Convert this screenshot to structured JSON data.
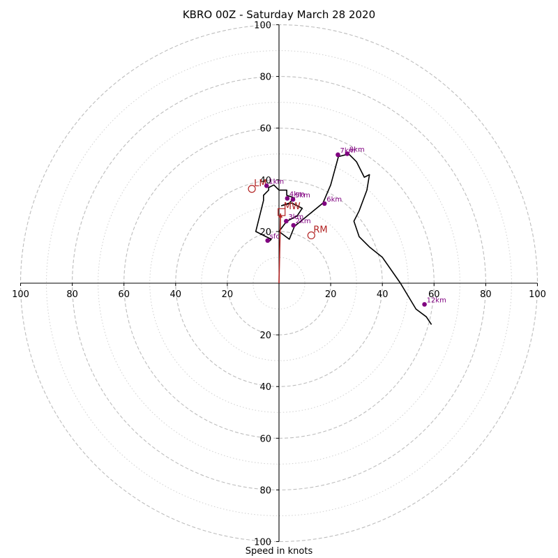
{
  "title": "KBRO 00Z - Saturday March 28 2020",
  "xlabel": "Speed in knots",
  "chart_data": {
    "type": "hodograph",
    "title": "KBRO 00Z - Saturday March 28 2020",
    "xlabel": "Speed in knots",
    "xlim": [
      -100,
      100
    ],
    "ylim": [
      -100,
      100
    ],
    "rings_major": [
      20,
      40,
      60,
      80,
      100
    ],
    "rings_minor": [
      10,
      30,
      50,
      70,
      90
    ],
    "tick_labels": {
      "x_left": [
        "100",
        "80",
        "60",
        "40",
        "20"
      ],
      "x_right": [
        "20",
        "40",
        "60",
        "80",
        "100"
      ],
      "y_up": [
        "20",
        "40",
        "60",
        "80",
        "100"
      ],
      "y_down": [
        "20",
        "40",
        "60",
        "80",
        "100"
      ]
    },
    "hodograph_line": {
      "color": "#000000",
      "u": [
        -4,
        -3,
        -9,
        -8,
        -7,
        -6,
        -6,
        -4,
        -4,
        -2,
        0,
        3,
        3,
        6,
        4,
        1,
        5,
        9,
        7,
        3,
        0,
        4,
        6,
        17,
        20,
        23,
        27,
        30,
        33,
        35,
        34,
        31,
        29,
        31,
        35,
        40,
        47,
        53,
        57,
        59
      ],
      "v": [
        16,
        17,
        20,
        24,
        28,
        32,
        34,
        36,
        37,
        38,
        36,
        36,
        34,
        33,
        31,
        30,
        31,
        29,
        26,
        24,
        20,
        17,
        22,
        31,
        38,
        49,
        50,
        47,
        41,
        42,
        36,
        28,
        24,
        18,
        14,
        10,
        0,
        -10,
        -13,
        -16
      ]
    },
    "height_markers": {
      "color": "#800080",
      "points": [
        {
          "label": "sfc",
          "u": -4.4,
          "v": 16.5
        },
        {
          "label": "1km",
          "u": -4.8,
          "v": 37.7
        },
        {
          "label": "2km",
          "u": 5.6,
          "v": 22.4
        },
        {
          "label": "3km",
          "u": 2.8,
          "v": 24.0
        },
        {
          "label": "4km",
          "u": 3.2,
          "v": 32.8
        },
        {
          "label": "5km",
          "u": 5.4,
          "v": 32.4
        },
        {
          "label": "6km",
          "u": 17.6,
          "v": 30.8
        },
        {
          "label": "7km",
          "u": 22.8,
          "v": 49.7
        },
        {
          "label": "8km",
          "u": 26.4,
          "v": 50.1
        },
        {
          "label": "12km",
          "u": 56.3,
          "v": -8.2
        }
      ]
    },
    "storm_motion": {
      "color": "#b22222",
      "markers": [
        {
          "label": "LM",
          "u": -10.5,
          "v": 36.5,
          "shape": "circle"
        },
        {
          "label": "RM",
          "u": 12.5,
          "v": 18.5,
          "shape": "circle"
        },
        {
          "label": "MW",
          "u": 1.0,
          "v": 27.5,
          "shape": "square"
        }
      ],
      "vector": {
        "from_u": 0,
        "from_v": 0,
        "to_u": 0.6,
        "to_v": 27
      }
    },
    "grid": true,
    "legend": "none"
  }
}
